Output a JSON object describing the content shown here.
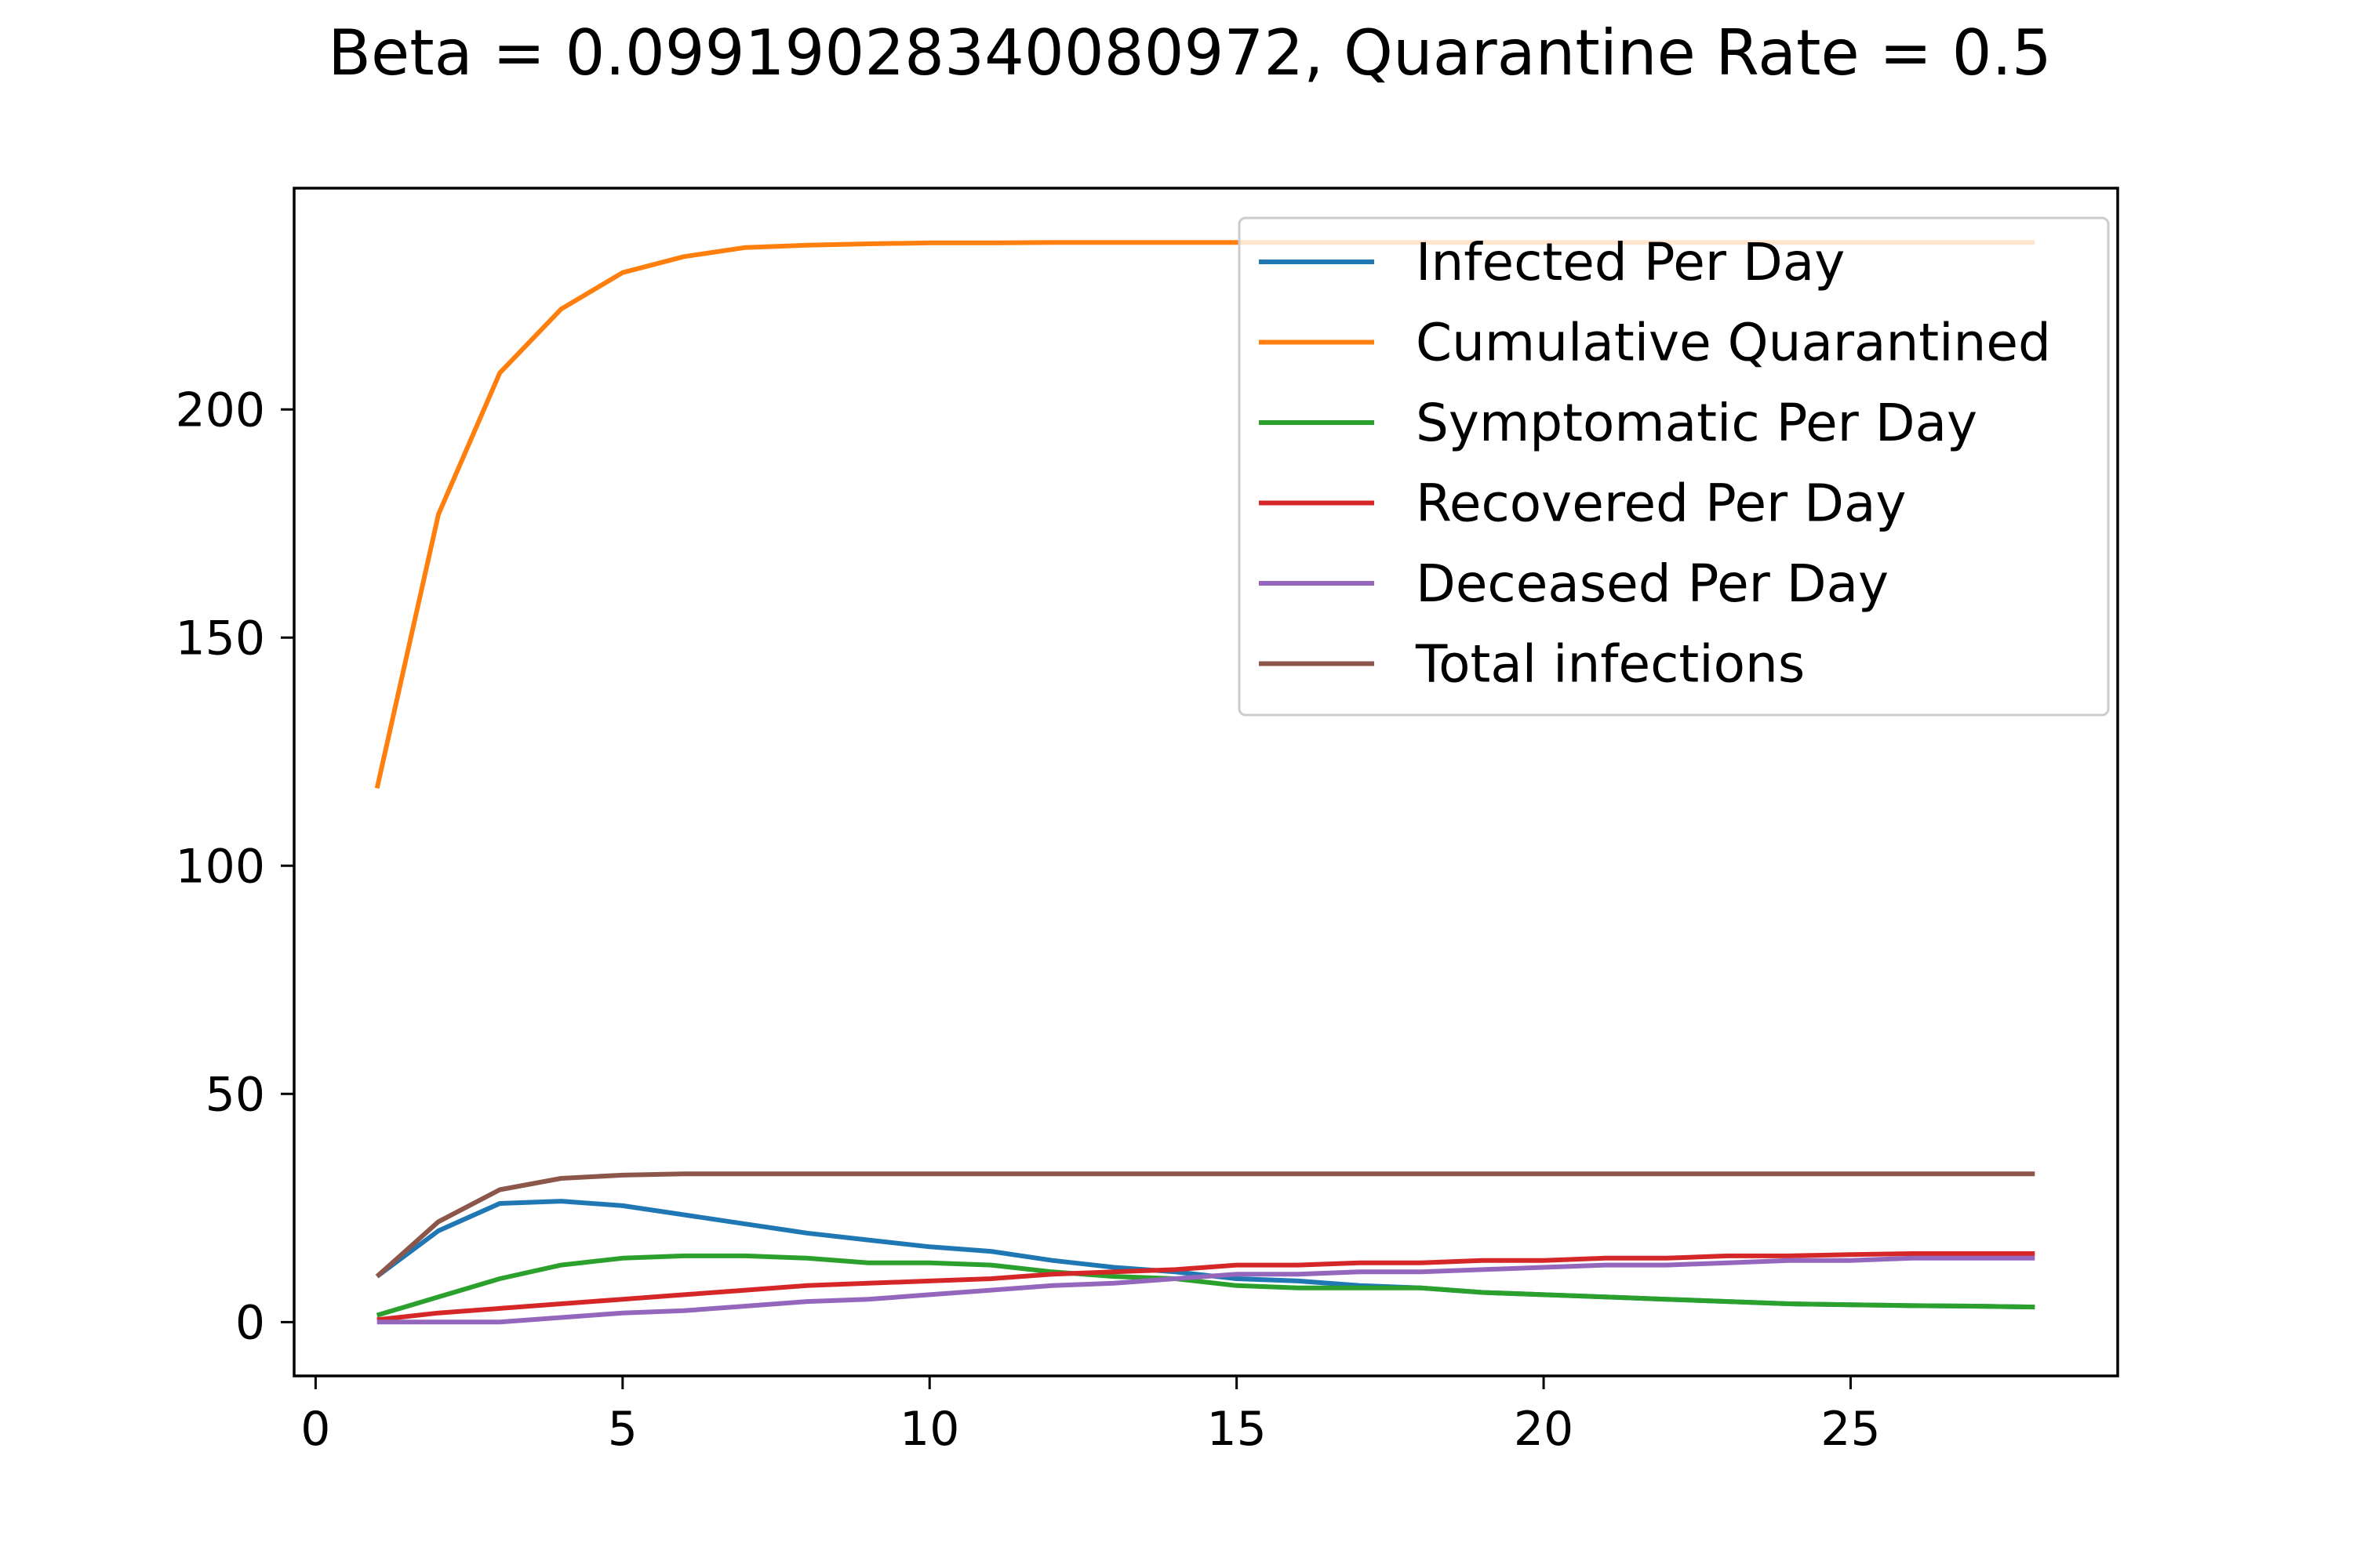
{
  "chart_data": {
    "type": "line",
    "title": "Beta = 0.09919028340080972, Quarantine Rate = 0.5",
    "xlabel": "",
    "ylabel": "",
    "xlim": [
      -0.35,
      29.35
    ],
    "ylim": [
      -11.8,
      248.5
    ],
    "xticks": [
      0,
      5,
      10,
      15,
      20,
      25
    ],
    "yticks": [
      0,
      50,
      100,
      150,
      200
    ],
    "grid": false,
    "legend_position": "upper right",
    "x": [
      1,
      2,
      3,
      4,
      5,
      6,
      7,
      8,
      9,
      10,
      11,
      12,
      13,
      14,
      15,
      16,
      17,
      18,
      19,
      20,
      21,
      22,
      23,
      24,
      25,
      26,
      27,
      28
    ],
    "series": [
      {
        "name": "Infected Per Day",
        "color": "#1f77b4",
        "values": [
          10,
          20,
          26,
          26.5,
          25.5,
          23.5,
          21.5,
          19.5,
          18,
          16.5,
          15.5,
          13.5,
          12,
          11,
          9.5,
          9,
          8,
          7.5,
          6.5,
          6,
          5.5,
          5,
          4.5,
          4,
          3.8,
          3.6,
          3.5,
          3.3
        ]
      },
      {
        "name": "Cumulative Quarantined",
        "color": "#ff7f0e",
        "values": [
          117,
          177,
          208,
          222,
          230,
          233.5,
          235.5,
          236,
          236.3,
          236.5,
          236.5,
          236.6,
          236.6,
          236.6,
          236.6,
          236.6,
          236.6,
          236.6,
          236.6,
          236.6,
          236.6,
          236.6,
          236.6,
          236.6,
          236.6,
          236.6,
          236.6,
          236.6
        ]
      },
      {
        "name": "Symptomatic Per Day",
        "color": "#2ca02c",
        "values": [
          1.5,
          5.5,
          9.5,
          12.5,
          14,
          14.5,
          14.5,
          14,
          13,
          13,
          12.5,
          11,
          10,
          9.5,
          8,
          7.5,
          7.5,
          7.5,
          6.5,
          6,
          5.5,
          5,
          4.5,
          4,
          3.8,
          3.6,
          3.5,
          3.3
        ]
      },
      {
        "name": "Recovered Per Day",
        "color": "#d62728",
        "values": [
          0.5,
          2,
          3,
          4,
          5,
          6,
          7,
          8,
          8.5,
          9,
          9.5,
          10.5,
          11,
          11.5,
          12.5,
          12.5,
          13,
          13,
          13.5,
          13.5,
          14,
          14,
          14.5,
          14.5,
          14.8,
          15,
          15,
          15
        ]
      },
      {
        "name": "Deceased Per Day",
        "color": "#9467bd",
        "values": [
          0,
          0,
          0,
          1,
          2,
          2.5,
          3.5,
          4.5,
          5,
          6,
          7,
          8,
          8.5,
          9.5,
          10.5,
          10.5,
          11,
          11,
          11.5,
          12,
          12.5,
          12.5,
          13,
          13.5,
          13.5,
          14,
          14,
          14
        ]
      },
      {
        "name": "Total infections",
        "color": "#8c564b",
        "values": [
          10,
          22,
          29,
          31.5,
          32.2,
          32.5,
          32.5,
          32.5,
          32.5,
          32.5,
          32.5,
          32.5,
          32.5,
          32.5,
          32.5,
          32.5,
          32.5,
          32.5,
          32.5,
          32.5,
          32.5,
          32.5,
          32.5,
          32.5,
          32.5,
          32.5,
          32.5,
          32.5
        ]
      }
    ]
  }
}
